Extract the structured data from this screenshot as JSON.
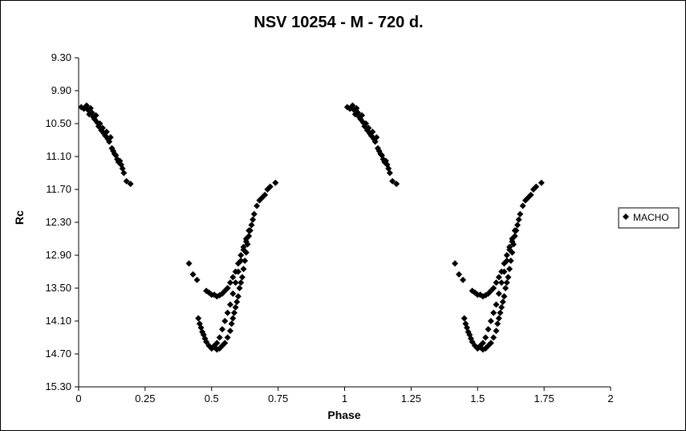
{
  "chart_data": {
    "type": "scatter",
    "title": "NSV 10254 - M - 720 d.",
    "xlabel": "Phase",
    "ylabel": "Rc",
    "xlim": [
      0,
      2
    ],
    "ylim": [
      9.3,
      15.3
    ],
    "y_reversed": true,
    "x_ticks": [
      "0",
      "0.25",
      "0.5",
      "0.75",
      "1",
      "1.25",
      "1.5",
      "1.75",
      "2"
    ],
    "y_ticks": [
      "9.30",
      "9.90",
      "10.50",
      "11.10",
      "11.70",
      "12.30",
      "12.90",
      "13.50",
      "14.10",
      "14.70",
      "15.30"
    ],
    "grid": false,
    "legend_position": "right",
    "marker_color": "#000000",
    "series": [
      {
        "name": "MACHO",
        "marker": "diamond",
        "points": [
          [
            0.01,
            10.2
          ],
          [
            0.02,
            10.23
          ],
          [
            0.03,
            10.17
          ],
          [
            0.035,
            10.25
          ],
          [
            0.04,
            10.33
          ],
          [
            0.045,
            10.22
          ],
          [
            0.05,
            10.3
          ],
          [
            0.055,
            10.38
          ],
          [
            0.06,
            10.42
          ],
          [
            0.065,
            10.35
          ],
          [
            0.07,
            10.48
          ],
          [
            0.075,
            10.55
          ],
          [
            0.08,
            10.5
          ],
          [
            0.085,
            10.62
          ],
          [
            0.09,
            10.58
          ],
          [
            0.095,
            10.68
          ],
          [
            0.1,
            10.72
          ],
          [
            0.105,
            10.65
          ],
          [
            0.11,
            10.78
          ],
          [
            0.115,
            10.83
          ],
          [
            0.12,
            10.75
          ],
          [
            0.125,
            10.95
          ],
          [
            0.13,
            11.0
          ],
          [
            0.135,
            11.05
          ],
          [
            0.14,
            11.08
          ],
          [
            0.145,
            11.15
          ],
          [
            0.15,
            11.2
          ],
          [
            0.155,
            11.18
          ],
          [
            0.16,
            11.25
          ],
          [
            0.165,
            11.32
          ],
          [
            0.17,
            11.4
          ],
          [
            0.18,
            11.55
          ],
          [
            0.195,
            11.6
          ],
          [
            0.415,
            13.05
          ],
          [
            0.43,
            13.25
          ],
          [
            0.445,
            13.35
          ],
          [
            0.45,
            14.05
          ],
          [
            0.455,
            14.15
          ],
          [
            0.46,
            14.22
          ],
          [
            0.465,
            14.3
          ],
          [
            0.47,
            14.35
          ],
          [
            0.475,
            14.42
          ],
          [
            0.48,
            14.48
          ],
          [
            0.49,
            14.55
          ],
          [
            0.5,
            14.6
          ],
          [
            0.51,
            14.58
          ],
          [
            0.52,
            14.62
          ],
          [
            0.53,
            14.6
          ],
          [
            0.54,
            14.55
          ],
          [
            0.55,
            14.5
          ],
          [
            0.56,
            14.4
          ],
          [
            0.57,
            14.28
          ],
          [
            0.575,
            14.15
          ],
          [
            0.58,
            14.05
          ],
          [
            0.585,
            13.95
          ],
          [
            0.59,
            13.85
          ],
          [
            0.595,
            13.75
          ],
          [
            0.6,
            13.65
          ],
          [
            0.605,
            13.5
          ],
          [
            0.61,
            13.4
          ],
          [
            0.615,
            13.3
          ],
          [
            0.62,
            13.15
          ],
          [
            0.625,
            13.0
          ],
          [
            0.63,
            12.85
          ],
          [
            0.635,
            12.7
          ],
          [
            0.64,
            12.55
          ],
          [
            0.645,
            12.45
          ],
          [
            0.65,
            12.35
          ],
          [
            0.655,
            12.25
          ],
          [
            0.66,
            12.15
          ],
          [
            0.67,
            12.0
          ],
          [
            0.68,
            11.9
          ],
          [
            0.69,
            11.85
          ],
          [
            0.7,
            11.8
          ],
          [
            0.71,
            11.7
          ],
          [
            0.72,
            11.65
          ],
          [
            0.74,
            11.58
          ],
          [
            0.48,
            13.55
          ],
          [
            0.49,
            13.58
          ],
          [
            0.5,
            13.62
          ],
          [
            0.51,
            13.62
          ],
          [
            0.52,
            13.65
          ],
          [
            0.53,
            13.63
          ],
          [
            0.54,
            13.6
          ],
          [
            0.55,
            13.55
          ],
          [
            0.56,
            13.5
          ],
          [
            0.57,
            13.4
          ],
          [
            0.58,
            13.3
          ],
          [
            0.59,
            13.2
          ],
          [
            0.6,
            13.05
          ],
          [
            0.61,
            12.9
          ],
          [
            0.62,
            12.75
          ],
          [
            0.63,
            12.6
          ],
          [
            0.64,
            12.45
          ],
          [
            0.5,
            14.6
          ],
          [
            0.51,
            14.55
          ],
          [
            0.52,
            14.5
          ],
          [
            0.53,
            14.4
          ],
          [
            0.54,
            14.25
          ],
          [
            0.55,
            14.1
          ],
          [
            0.56,
            13.95
          ],
          [
            0.57,
            13.8
          ],
          [
            0.58,
            13.6
          ],
          [
            0.59,
            13.4
          ],
          [
            0.6,
            13.2
          ],
          [
            0.61,
            13.0
          ],
          [
            0.62,
            12.8
          ],
          [
            0.63,
            12.65
          ],
          [
            1.01,
            10.2
          ],
          [
            1.02,
            10.23
          ],
          [
            1.03,
            10.17
          ],
          [
            1.035,
            10.25
          ],
          [
            1.04,
            10.33
          ],
          [
            1.045,
            10.22
          ],
          [
            1.05,
            10.3
          ],
          [
            1.055,
            10.38
          ],
          [
            1.06,
            10.42
          ],
          [
            1.065,
            10.35
          ],
          [
            1.07,
            10.48
          ],
          [
            1.075,
            10.55
          ],
          [
            1.08,
            10.5
          ],
          [
            1.085,
            10.62
          ],
          [
            1.09,
            10.58
          ],
          [
            1.095,
            10.68
          ],
          [
            1.1,
            10.72
          ],
          [
            1.105,
            10.65
          ],
          [
            1.11,
            10.78
          ],
          [
            1.115,
            10.83
          ],
          [
            1.12,
            10.75
          ],
          [
            1.125,
            10.95
          ],
          [
            1.13,
            11.0
          ],
          [
            1.135,
            11.05
          ],
          [
            1.14,
            11.08
          ],
          [
            1.145,
            11.15
          ],
          [
            1.15,
            11.2
          ],
          [
            1.155,
            11.18
          ],
          [
            1.16,
            11.25
          ],
          [
            1.165,
            11.32
          ],
          [
            1.17,
            11.4
          ],
          [
            1.18,
            11.55
          ],
          [
            1.195,
            11.6
          ],
          [
            1.415,
            13.05
          ],
          [
            1.43,
            13.25
          ],
          [
            1.445,
            13.35
          ],
          [
            1.45,
            14.05
          ],
          [
            1.455,
            14.15
          ],
          [
            1.46,
            14.22
          ],
          [
            1.465,
            14.3
          ],
          [
            1.47,
            14.35
          ],
          [
            1.475,
            14.42
          ],
          [
            1.48,
            14.48
          ],
          [
            1.49,
            14.55
          ],
          [
            1.5,
            14.6
          ],
          [
            1.51,
            14.58
          ],
          [
            1.52,
            14.62
          ],
          [
            1.53,
            14.6
          ],
          [
            1.54,
            14.55
          ],
          [
            1.55,
            14.5
          ],
          [
            1.56,
            14.4
          ],
          [
            1.57,
            14.28
          ],
          [
            1.575,
            14.15
          ],
          [
            1.58,
            14.05
          ],
          [
            1.585,
            13.95
          ],
          [
            1.59,
            13.85
          ],
          [
            1.595,
            13.75
          ],
          [
            1.6,
            13.65
          ],
          [
            1.605,
            13.5
          ],
          [
            1.61,
            13.4
          ],
          [
            1.615,
            13.3
          ],
          [
            1.62,
            13.15
          ],
          [
            1.625,
            13.0
          ],
          [
            1.63,
            12.85
          ],
          [
            1.635,
            12.7
          ],
          [
            1.64,
            12.55
          ],
          [
            1.645,
            12.45
          ],
          [
            1.65,
            12.35
          ],
          [
            1.655,
            12.25
          ],
          [
            1.66,
            12.15
          ],
          [
            1.67,
            12.0
          ],
          [
            1.68,
            11.9
          ],
          [
            1.69,
            11.85
          ],
          [
            1.7,
            11.8
          ],
          [
            1.71,
            11.7
          ],
          [
            1.72,
            11.65
          ],
          [
            1.74,
            11.58
          ],
          [
            1.48,
            13.55
          ],
          [
            1.49,
            13.58
          ],
          [
            1.5,
            13.62
          ],
          [
            1.51,
            13.62
          ],
          [
            1.52,
            13.65
          ],
          [
            1.53,
            13.63
          ],
          [
            1.54,
            13.6
          ],
          [
            1.55,
            13.55
          ],
          [
            1.56,
            13.5
          ],
          [
            1.57,
            13.4
          ],
          [
            1.58,
            13.3
          ],
          [
            1.59,
            13.2
          ],
          [
            1.6,
            13.05
          ],
          [
            1.61,
            12.9
          ],
          [
            1.62,
            12.75
          ],
          [
            1.63,
            12.6
          ],
          [
            1.64,
            12.45
          ],
          [
            1.5,
            14.6
          ],
          [
            1.51,
            14.55
          ],
          [
            1.52,
            14.5
          ],
          [
            1.53,
            14.4
          ],
          [
            1.54,
            14.25
          ],
          [
            1.55,
            14.1
          ],
          [
            1.56,
            13.95
          ],
          [
            1.57,
            13.8
          ],
          [
            1.58,
            13.6
          ],
          [
            1.59,
            13.4
          ],
          [
            1.6,
            13.2
          ],
          [
            1.61,
            13.0
          ],
          [
            1.62,
            12.8
          ],
          [
            1.63,
            12.65
          ]
        ]
      }
    ]
  }
}
